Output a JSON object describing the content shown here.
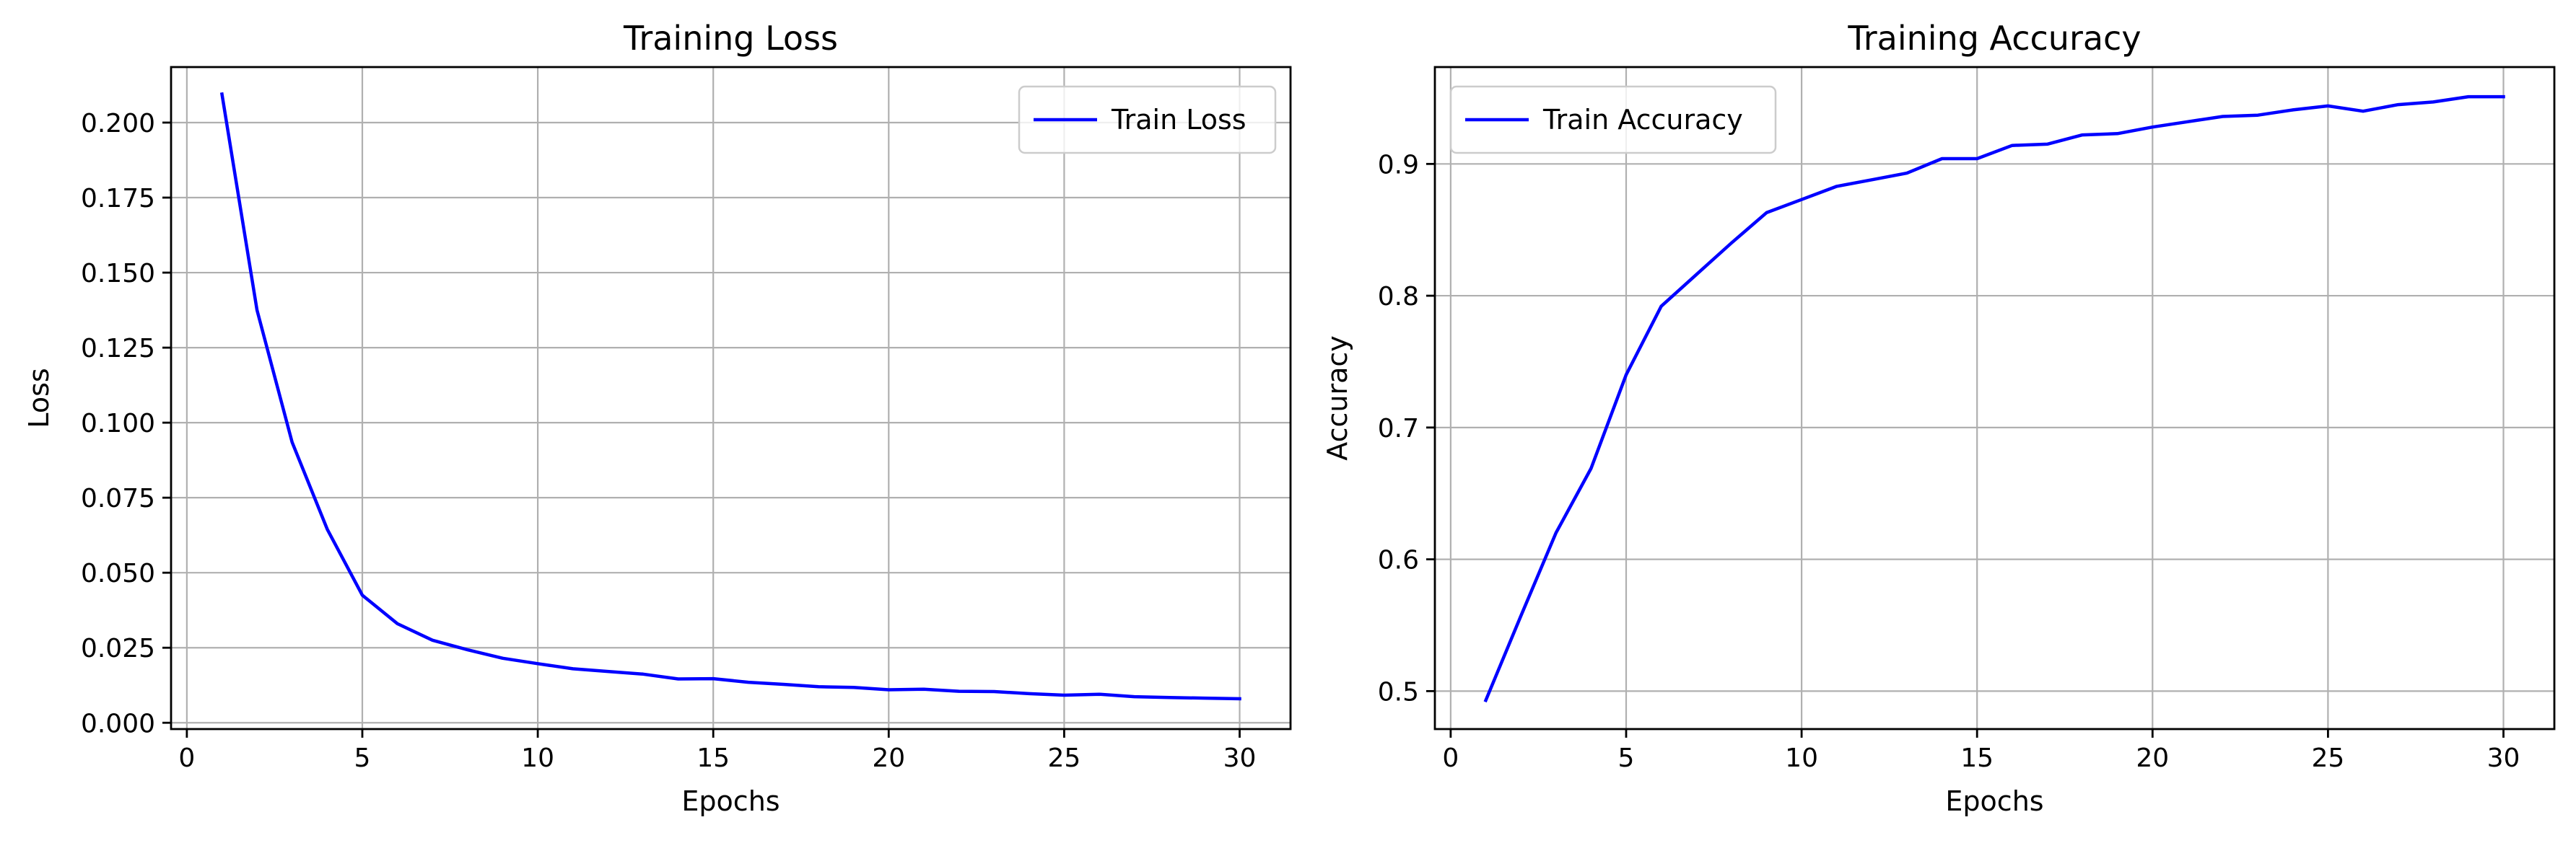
{
  "chart_data": [
    {
      "type": "line",
      "title": "Training Loss",
      "xlabel": "Epochs",
      "ylabel": "Loss",
      "xlim": [
        -0.45,
        31.45
      ],
      "ylim": [
        -0.0021,
        0.2185
      ],
      "xticks": [
        0,
        5,
        10,
        15,
        20,
        25,
        30
      ],
      "xtick_labels": [
        "0",
        "5",
        "10",
        "15",
        "20",
        "25",
        "30"
      ],
      "yticks": [
        0.0,
        0.025,
        0.05,
        0.075,
        0.1,
        0.125,
        0.15,
        0.175,
        0.2
      ],
      "ytick_labels": [
        "0.000",
        "0.025",
        "0.050",
        "0.075",
        "0.100",
        "0.125",
        "0.150",
        "0.175",
        "0.200"
      ],
      "grid": true,
      "legend_position": "top-right",
      "line_color": "#0000ff",
      "series": [
        {
          "name": "Train Loss",
          "x": [
            1,
            2,
            3,
            4,
            5,
            6,
            7,
            8,
            9,
            10,
            11,
            12,
            13,
            14,
            15,
            16,
            17,
            18,
            19,
            20,
            21,
            22,
            23,
            24,
            25,
            26,
            27,
            28,
            29,
            30
          ],
          "values": [
            0.2095,
            0.1375,
            0.0935,
            0.0645,
            0.0425,
            0.033,
            0.0275,
            0.0243,
            0.0215,
            0.0197,
            0.018,
            0.0171,
            0.0162,
            0.0146,
            0.0147,
            0.0135,
            0.0128,
            0.012,
            0.0118,
            0.011,
            0.0112,
            0.0105,
            0.0104,
            0.0097,
            0.0092,
            0.0095,
            0.0087,
            0.0084,
            0.0082,
            0.008
          ]
        }
      ]
    },
    {
      "type": "line",
      "title": "Training Accuracy",
      "xlabel": "Epochs",
      "ylabel": "Accuracy",
      "xlim": [
        -0.45,
        31.45
      ],
      "ylim": [
        0.4712,
        0.9735
      ],
      "xticks": [
        0,
        5,
        10,
        15,
        20,
        25,
        30
      ],
      "xtick_labels": [
        "0",
        "5",
        "10",
        "15",
        "20",
        "25",
        "30"
      ],
      "yticks": [
        0.5,
        0.6,
        0.7,
        0.8,
        0.9
      ],
      "ytick_labels": [
        "0.5",
        "0.6",
        "0.7",
        "0.8",
        "0.9"
      ],
      "grid": true,
      "legend_position": "top-left",
      "line_color": "#0000ff",
      "series": [
        {
          "name": "Train Accuracy",
          "x": [
            1,
            2,
            3,
            4,
            5,
            6,
            7,
            8,
            9,
            10,
            11,
            12,
            13,
            14,
            15,
            16,
            17,
            18,
            19,
            20,
            21,
            22,
            23,
            24,
            25,
            26,
            27,
            28,
            29,
            30
          ],
          "values": [
            0.493,
            0.557,
            0.62,
            0.669,
            0.74,
            0.792,
            0.816,
            0.84,
            0.863,
            0.873,
            0.883,
            0.888,
            0.893,
            0.904,
            0.904,
            0.914,
            0.915,
            0.922,
            0.923,
            0.928,
            0.932,
            0.936,
            0.937,
            0.941,
            0.944,
            0.94,
            0.945,
            0.947,
            0.951,
            0.951
          ]
        }
      ]
    }
  ]
}
